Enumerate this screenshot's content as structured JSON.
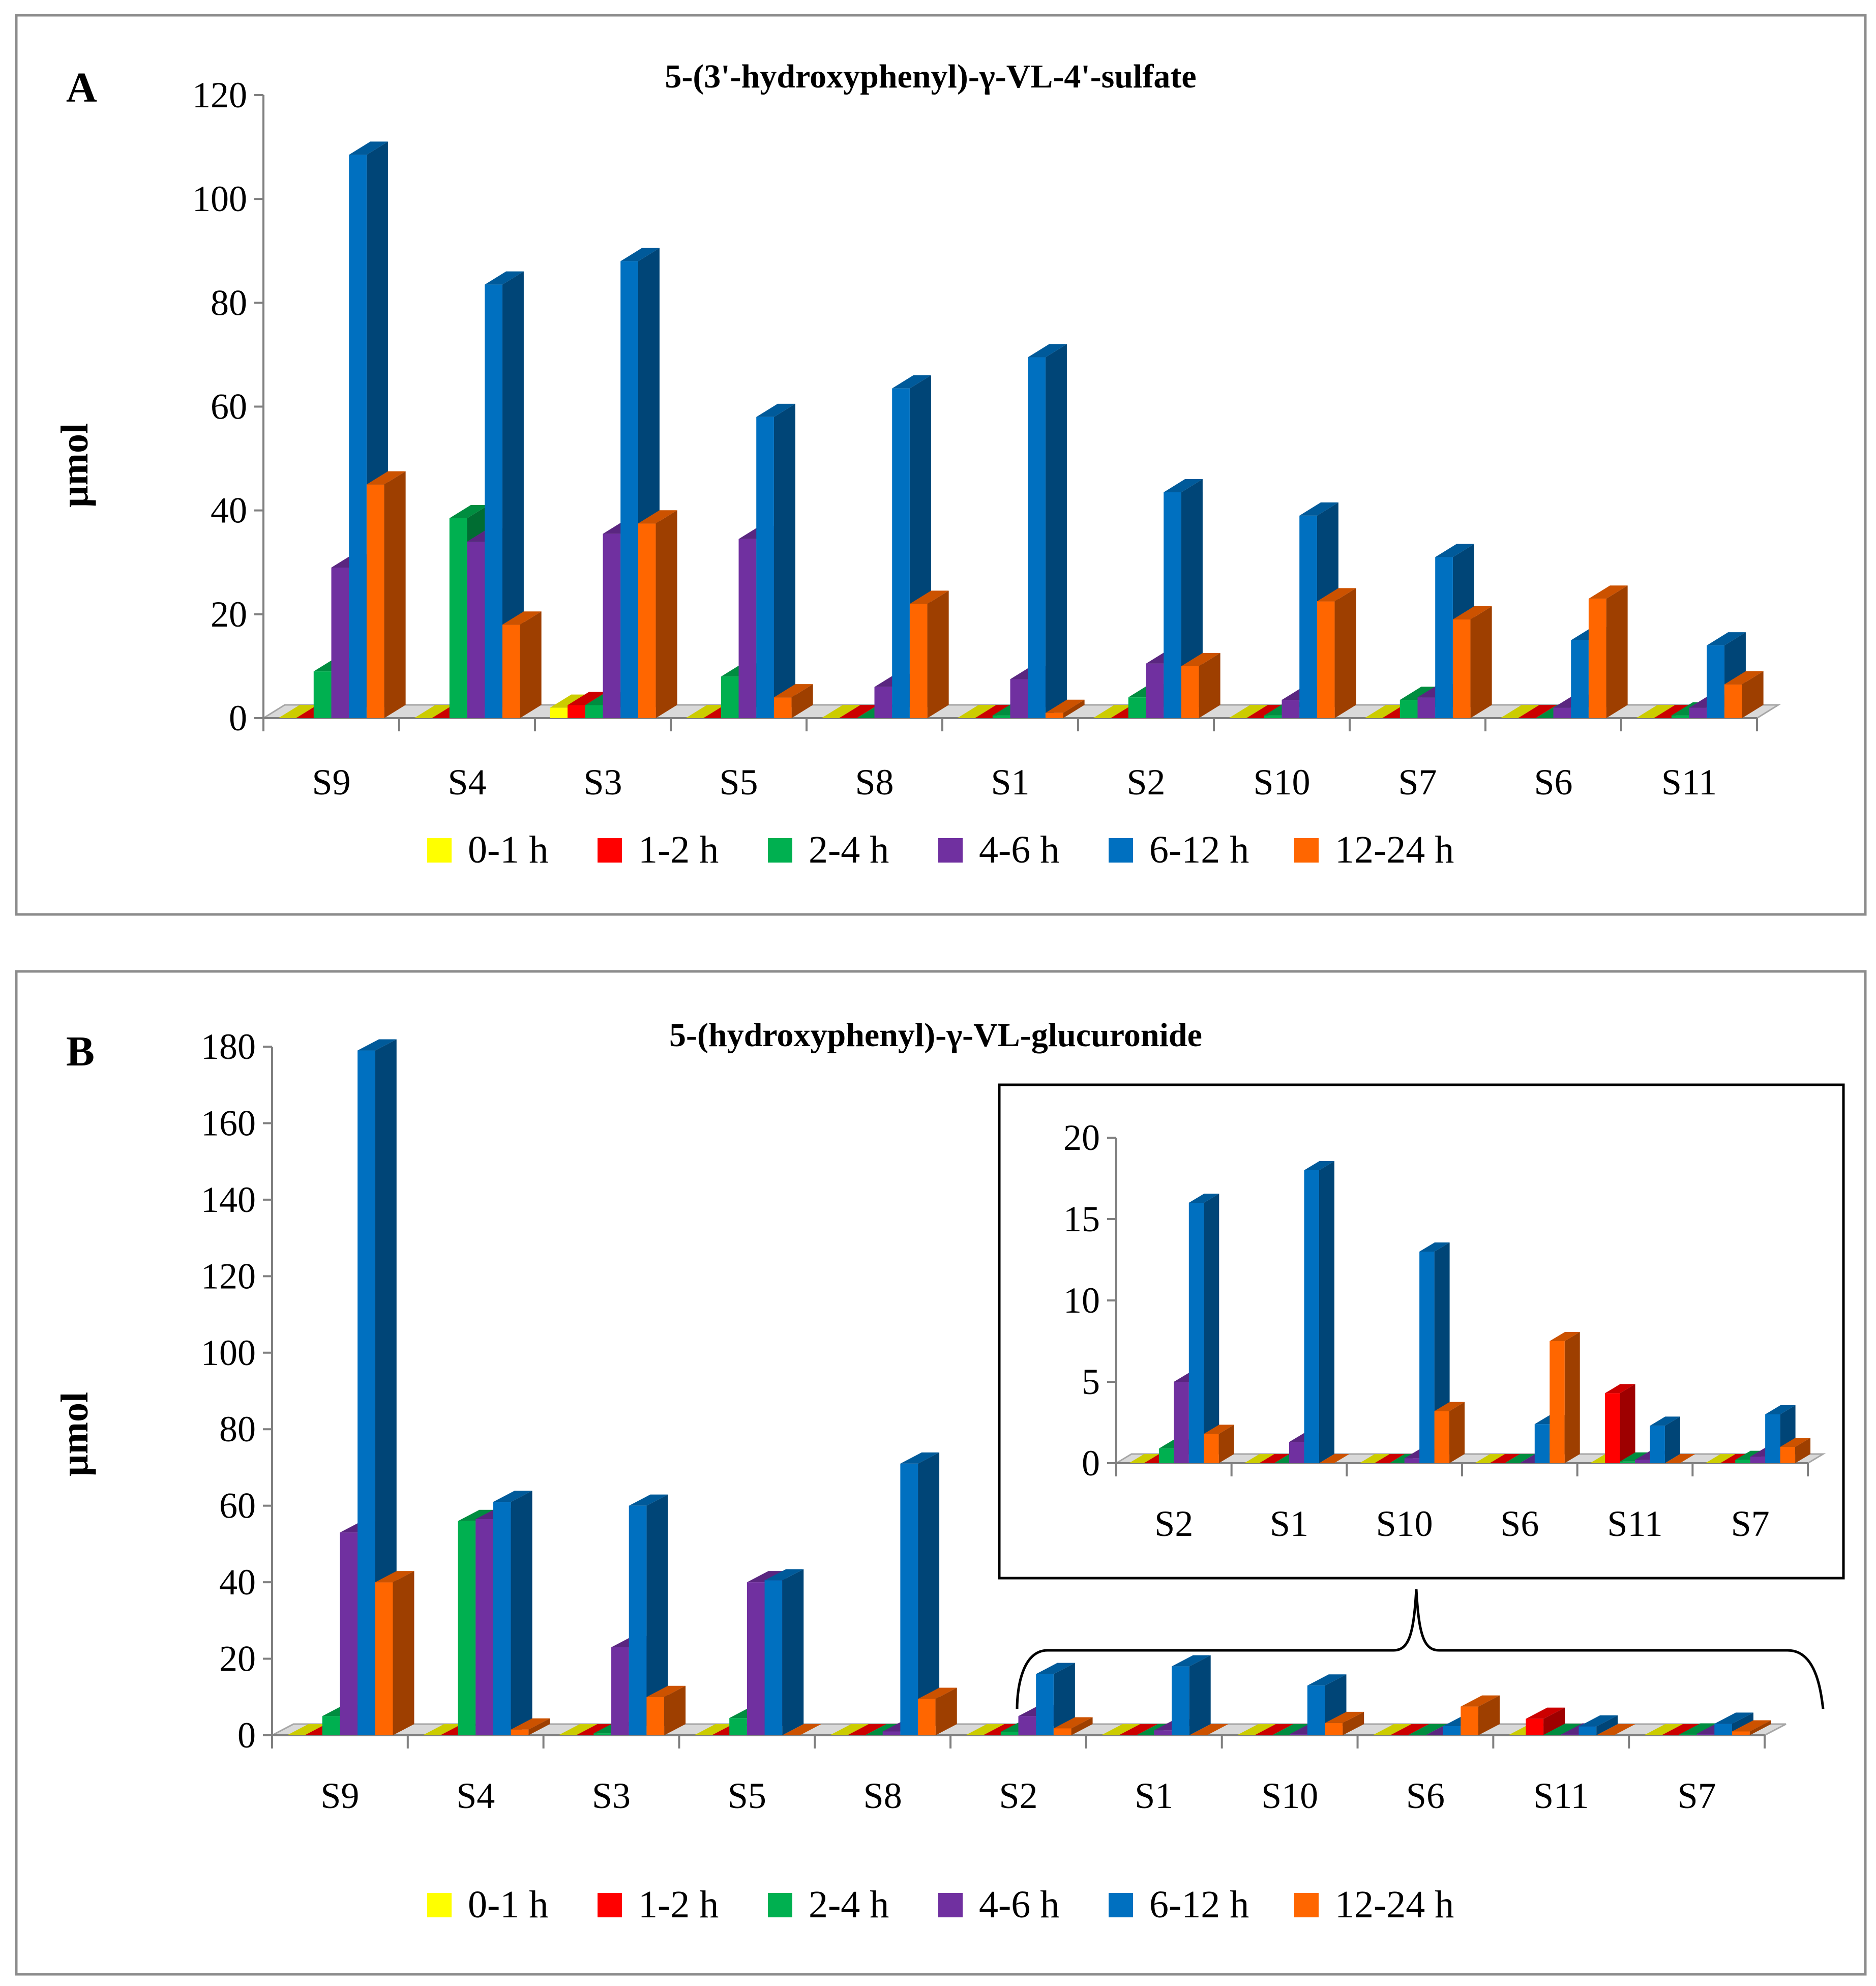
{
  "legend": [
    "0-1 h",
    "1-2 h",
    "2-4 h",
    "4-6 h",
    "6-12 h",
    "12-24 h"
  ],
  "colors": {
    "0-1 h": "#ffff00",
    "1-2 h": "#ff0000",
    "2-4 h": "#00b050",
    "4-6 h": "#7030a0",
    "6-12 h": "#0070c0",
    "12-24 h": "#ff6600"
  },
  "chart_data": [
    {
      "id": "A",
      "panel_label": "A",
      "type": "bar",
      "title": "5-(3'-hydroxyphenyl)-γ-VL-4'-sulfate",
      "ylabel": "µmol",
      "xlabel": "",
      "ylim": [
        0,
        120
      ],
      "yticks": [
        0,
        20,
        40,
        60,
        80,
        100,
        120
      ],
      "categories": [
        "S9",
        "S4",
        "S3",
        "S5",
        "S8",
        "S1",
        "S2",
        "S10",
        "S7",
        "S6",
        "S11"
      ],
      "series": [
        {
          "name": "0-1 h",
          "values": [
            0,
            0,
            2,
            0,
            0,
            0,
            0,
            0,
            0,
            0,
            0
          ]
        },
        {
          "name": "1-2 h",
          "values": [
            0,
            0,
            2.5,
            0,
            0,
            0,
            0,
            0,
            0,
            0,
            0
          ]
        },
        {
          "name": "2-4 h",
          "values": [
            9,
            38.5,
            2.5,
            8,
            0,
            0.5,
            4,
            0.5,
            3.5,
            0,
            0.5
          ]
        },
        {
          "name": "4-6 h",
          "values": [
            29,
            34,
            35.5,
            34.5,
            6,
            7.5,
            10.5,
            3.5,
            4,
            2,
            2
          ]
        },
        {
          "name": "6-12 h",
          "values": [
            108.5,
            83.5,
            88,
            58,
            63.5,
            69.5,
            43.5,
            39,
            31,
            15,
            14
          ]
        },
        {
          "name": "12-24 h",
          "values": [
            45,
            18,
            37.5,
            4,
            22,
            1,
            10,
            22.5,
            19,
            23,
            6.5
          ]
        }
      ]
    },
    {
      "id": "B",
      "panel_label": "B",
      "type": "bar",
      "title": "5-(hydroxyphenyl)-γ-VL-glucuronide",
      "ylabel": "µmol",
      "xlabel": "",
      "ylim": [
        0,
        180
      ],
      "yticks": [
        0,
        20,
        40,
        60,
        80,
        100,
        120,
        140,
        160,
        180
      ],
      "categories": [
        "S9",
        "S4",
        "S3",
        "S5",
        "S8",
        "S2",
        "S1",
        "S10",
        "S6",
        "S11",
        "S7"
      ],
      "series": [
        {
          "name": "0-1 h",
          "values": [
            0,
            0,
            0,
            0,
            0,
            0,
            0,
            0,
            0,
            0,
            0
          ]
        },
        {
          "name": "1-2 h",
          "values": [
            0,
            0,
            0,
            0,
            0,
            0,
            0,
            0,
            0,
            4.3,
            0
          ]
        },
        {
          "name": "2-4 h",
          "values": [
            5,
            56,
            0.5,
            4.5,
            0,
            0.9,
            0,
            0,
            0,
            0.1,
            0.2
          ]
        },
        {
          "name": "4-6 h",
          "values": [
            53,
            56.5,
            23,
            40,
            1,
            5,
            1.3,
            0.3,
            0,
            0.2,
            0.4
          ]
        },
        {
          "name": "6-12 h",
          "values": [
            179,
            61,
            60,
            40.5,
            71,
            16,
            18,
            13,
            2.4,
            2.3,
            3
          ]
        },
        {
          "name": "12-24 h",
          "values": [
            40,
            1.5,
            10,
            0,
            9.5,
            1.8,
            0,
            3.2,
            7.5,
            0,
            1
          ]
        }
      ]
    },
    {
      "id": "B-inset",
      "type": "bar",
      "title": "",
      "ylim": [
        0,
        20
      ],
      "yticks": [
        0,
        5,
        10,
        15,
        20
      ],
      "categories": [
        "S2",
        "S1",
        "S10",
        "S6",
        "S11",
        "S7"
      ],
      "series": [
        {
          "name": "0-1 h",
          "values": [
            0,
            0,
            0,
            0,
            0,
            0
          ]
        },
        {
          "name": "1-2 h",
          "values": [
            0,
            0,
            0,
            0,
            4.3,
            0
          ]
        },
        {
          "name": "2-4 h",
          "values": [
            0.9,
            0,
            0,
            0,
            0.1,
            0.2
          ]
        },
        {
          "name": "4-6 h",
          "values": [
            5,
            1.3,
            0.3,
            0,
            0.2,
            0.4
          ]
        },
        {
          "name": "6-12 h",
          "values": [
            16,
            18,
            13,
            2.4,
            2.3,
            3
          ]
        },
        {
          "name": "12-24 h",
          "values": [
            1.8,
            0,
            3.2,
            7.5,
            0,
            1
          ]
        }
      ]
    }
  ]
}
